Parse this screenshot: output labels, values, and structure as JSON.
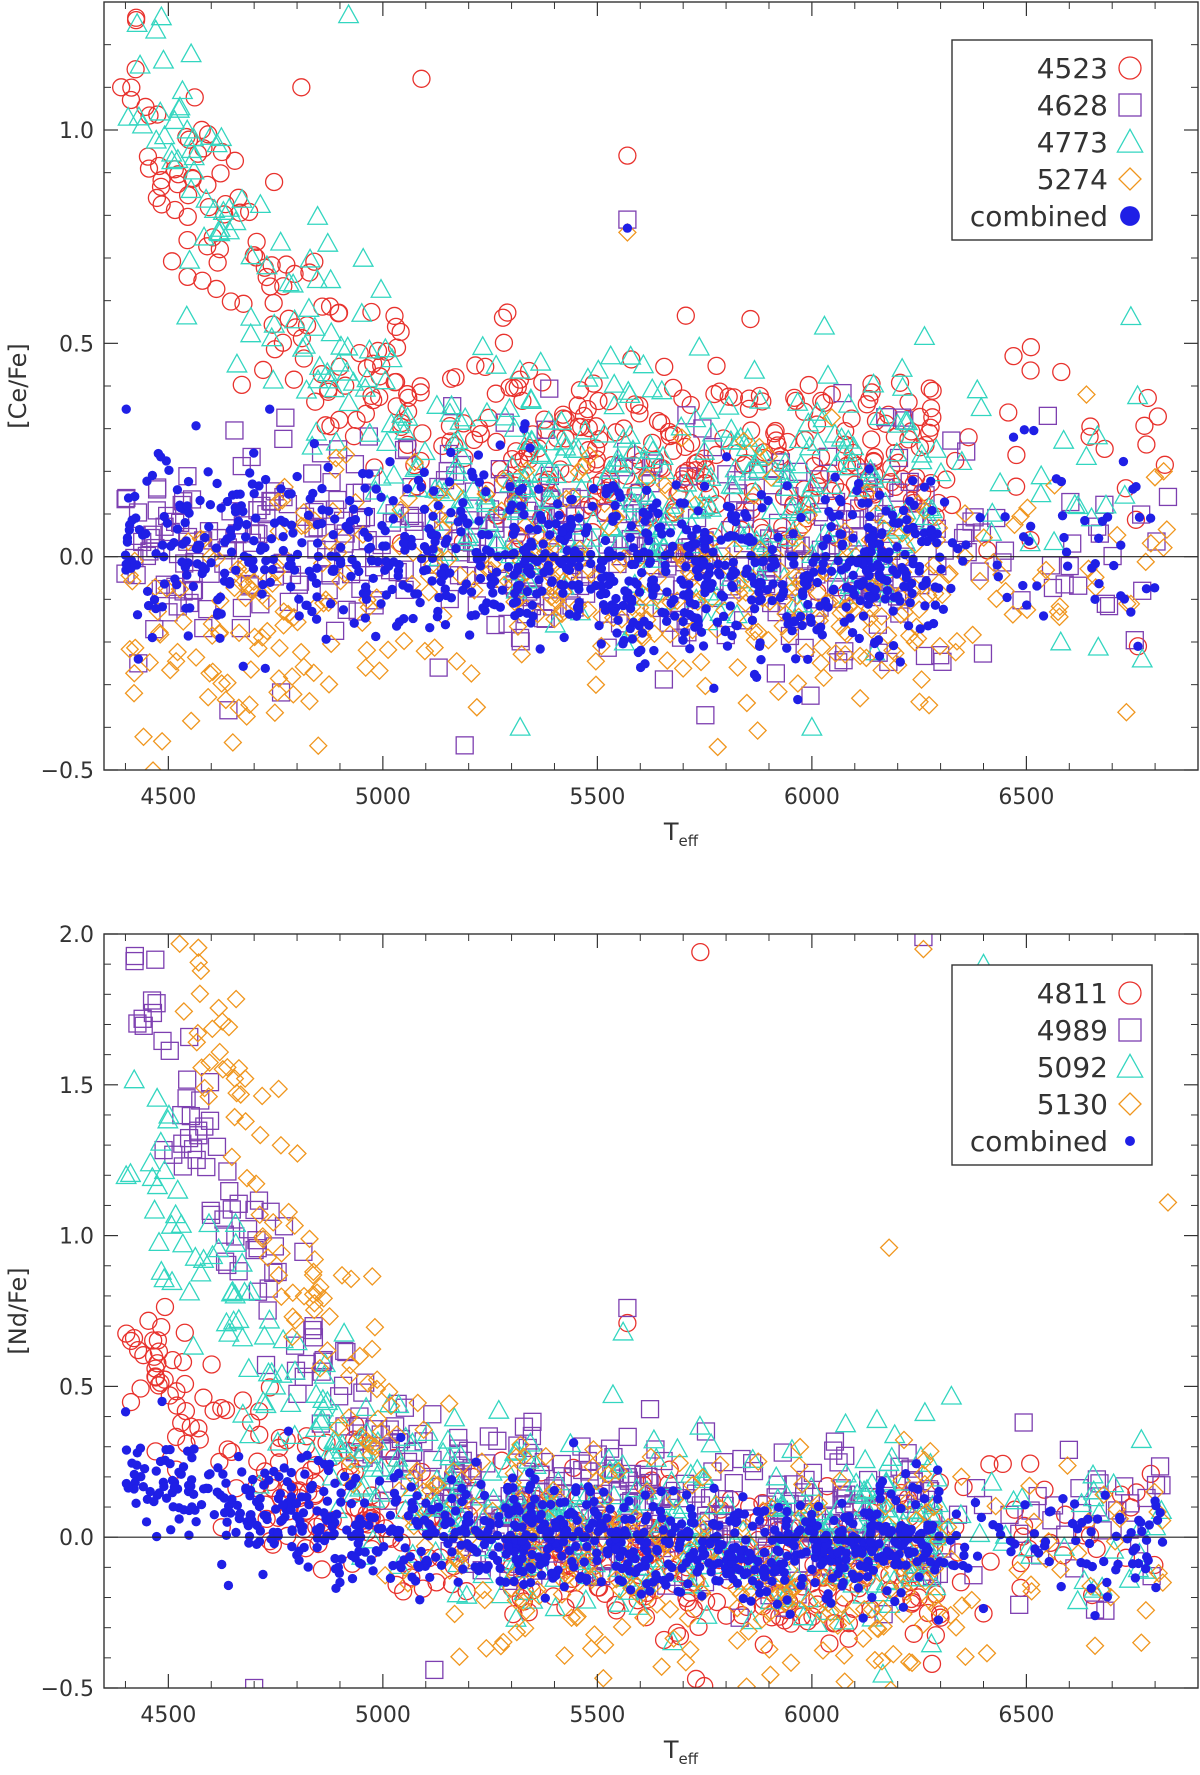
{
  "chart_data": [
    {
      "type": "scatter",
      "title": "",
      "xlabel": "T",
      "xlabel_sub": "eff",
      "ylabel": "[Ce/Fe]",
      "xlim": [
        4350,
        6900
      ],
      "ylim": [
        -0.5,
        1.3
      ],
      "xticks": [
        4500,
        5000,
        5500,
        6000,
        6500
      ],
      "xtick_labels": [
        "4500",
        "5000",
        "5500",
        "6000",
        "6500"
      ],
      "yticks": [
        -0.5,
        0.0,
        0.5,
        1.0
      ],
      "ytick_labels": [
        "−0.5",
        "0.0",
        "0.5",
        "1.0"
      ],
      "reference_line": 0.0,
      "legend_position": "top-right",
      "series": [
        {
          "name": "4523",
          "marker": "circle-open",
          "color": "#e8322d",
          "mean": 0.26,
          "slope_cool": 0.62,
          "spread": 0.12,
          "n": 420,
          "outliers": [
            [
              5090,
              1.12
            ],
            [
              5570,
              0.94
            ],
            [
              6470,
              0.47
            ],
            [
              5280,
              0.56
            ],
            [
              4390,
              1.1
            ],
            [
              6760,
              -0.21
            ],
            [
              4810,
              1.1
            ]
          ]
        },
        {
          "name": "4628",
          "marker": "square-open",
          "color": "#7d3fb0",
          "mean": 0.05,
          "slope_cool": 0.0,
          "spread": 0.13,
          "n": 430,
          "outliers": [
            [
              5570,
              0.79
            ],
            [
              4430,
              -0.25
            ],
            [
              4640,
              -0.36
            ],
            [
              6830,
              0.14
            ],
            [
              6550,
              0.33
            ],
            [
              6770,
              -0.08
            ],
            [
              5130,
              -0.26
            ]
          ]
        },
        {
          "name": "4773",
          "marker": "triangle-open",
          "color": "#33d6c0",
          "mean": 0.18,
          "slope_cool": 0.8,
          "spread": 0.14,
          "n": 430,
          "outliers": [
            [
              4920,
              1.27
            ],
            [
              5320,
              -0.4
            ],
            [
              6000,
              -0.4
            ],
            [
              6770,
              -0.24
            ],
            [
              6580,
              -0.2
            ]
          ]
        },
        {
          "name": "5274",
          "marker": "diamond-open",
          "color": "#f0961e",
          "mean": -0.04,
          "slope_cool": -0.12,
          "spread": 0.14,
          "n": 420,
          "outliers": [
            [
              5570,
              0.76
            ],
            [
              6640,
              0.38
            ],
            [
              6820,
              0.2
            ],
            [
              4420,
              -0.32
            ],
            [
              4960,
              -0.26
            ]
          ]
        },
        {
          "name": "combined",
          "marker": "filled-circle",
          "color": "#1f1fe6",
          "mean": 0.0,
          "slope_cool": 0.05,
          "spread": 0.1,
          "n": 950,
          "outliers": [
            [
              5570,
              0.77
            ],
            [
              6660,
              -0.1
            ],
            [
              6760,
              -0.21
            ],
            [
              4430,
              -0.24
            ],
            [
              6470,
              0.28
            ]
          ]
        }
      ]
    },
    {
      "type": "scatter",
      "title": "",
      "xlabel": "T",
      "xlabel_sub": "eff",
      "ylabel": "[Nd/Fe]",
      "xlim": [
        4350,
        6900
      ],
      "ylim": [
        -0.5,
        2.0
      ],
      "xticks": [
        4500,
        5000,
        5500,
        6000,
        6500
      ],
      "xtick_labels": [
        "4500",
        "5000",
        "5500",
        "6000",
        "6500"
      ],
      "yticks": [
        -0.5,
        0.0,
        0.5,
        1.0,
        1.5,
        2.0
      ],
      "ytick_labels": [
        "−0.5",
        "0.0",
        "0.5",
        "1.0",
        "1.5",
        "2.0"
      ],
      "reference_line": 0.0,
      "legend_position": "top-right",
      "series": [
        {
          "name": "4811",
          "marker": "circle-open",
          "color": "#e8322d",
          "mean": -0.05,
          "slope_cool": 0.5,
          "spread": 0.13,
          "n": 420,
          "outliers": [
            [
              5740,
              1.94
            ],
            [
              4420,
              0.66
            ],
            [
              6280,
              -0.42
            ],
            [
              6790,
              0.21
            ],
            [
              5730,
              -0.47
            ],
            [
              5570,
              0.71
            ]
          ]
        },
        {
          "name": "4989",
          "marker": "square-open",
          "color": "#7d3fb0",
          "mean": 0.1,
          "slope_cool": 1.35,
          "spread": 0.14,
          "n": 430,
          "outliers": [
            [
              5570,
              0.76
            ],
            [
              6260,
              1.99
            ],
            [
              5120,
              -0.44
            ],
            [
              4700,
              -0.5
            ],
            [
              6780,
              0.13
            ],
            [
              6660,
              -0.24
            ]
          ]
        },
        {
          "name": "5092",
          "marker": "triangle-open",
          "color": "#33d6c0",
          "mean": 0.05,
          "slope_cool": 0.95,
          "spread": 0.15,
          "n": 440,
          "outliers": [
            [
              5560,
              0.68
            ],
            [
              6400,
              1.9
            ],
            [
              6780,
              -0.11
            ],
            [
              6490,
              0.13
            ]
          ]
        },
        {
          "name": "5130",
          "marker": "diamond-open",
          "color": "#f0961e",
          "mean": -0.05,
          "slope_cool": 2.1,
          "spread": 0.18,
          "n": 440,
          "outliers": [
            [
              6830,
              1.11
            ],
            [
              6180,
              0.96
            ],
            [
              6260,
              1.95
            ],
            [
              6660,
              -0.36
            ]
          ]
        },
        {
          "name": "combined",
          "marker": "filled-circle",
          "color": "#1f1fe6",
          "mean": 0.0,
          "slope_cool": 0.15,
          "spread": 0.09,
          "n": 950,
          "outliers": [
            [
              4640,
              -0.16
            ],
            [
              4900,
              -0.15
            ],
            [
              6800,
              0.12
            ],
            [
              6660,
              -0.26
            ],
            [
              6780,
              -0.01
            ]
          ]
        }
      ]
    }
  ]
}
